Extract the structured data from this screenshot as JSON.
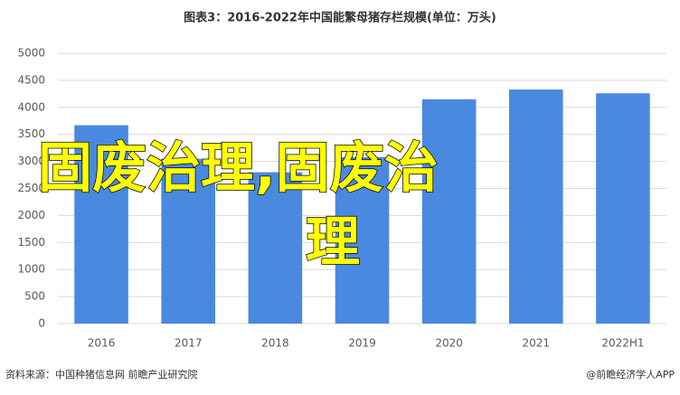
{
  "chart_data": {
    "type": "bar",
    "title": "图表3：2016-2022年中国能繁母猪存栏规模(单位：万头)",
    "categories": [
      "2016",
      "2017",
      "2018",
      "2019",
      "2020",
      "2021",
      "2022H1"
    ],
    "values": [
      3670,
      3050,
      2800,
      3080,
      4150,
      4330,
      4260
    ],
    "color": "#4a89e0",
    "ylim": [
      0,
      5000
    ],
    "yticks": [
      0,
      500,
      1000,
      1500,
      2000,
      2500,
      3000,
      3500,
      4000,
      4500,
      5000
    ],
    "grid": true,
    "source": "资料来源：中国种猪信息网 前瞻产业研究院",
    "credit": "@前瞻经济学人APP",
    "overlay_text": [
      "固废治理,固废治",
      "理"
    ]
  }
}
